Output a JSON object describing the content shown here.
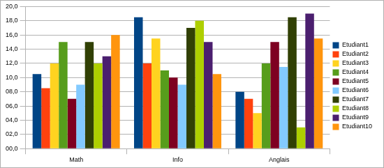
{
  "chart_data": {
    "type": "bar",
    "categories": [
      "Math",
      "Info",
      "Anglais"
    ],
    "series": [
      {
        "name": "Etudiant1",
        "color": "#004586",
        "values": [
          10.5,
          18.5,
          8
        ]
      },
      {
        "name": "Etudiant2",
        "color": "#ff420e",
        "values": [
          8.5,
          12,
          7
        ]
      },
      {
        "name": "Etudiant3",
        "color": "#ffd320",
        "values": [
          12,
          15.5,
          5
        ]
      },
      {
        "name": "Etudiant4",
        "color": "#579d1c",
        "values": [
          15,
          11,
          12
        ]
      },
      {
        "name": "Etudiant5",
        "color": "#7e0021",
        "values": [
          7,
          10,
          15
        ]
      },
      {
        "name": "Etudiant6",
        "color": "#83caff",
        "values": [
          9,
          9,
          11.5
        ]
      },
      {
        "name": "Etudiant7",
        "color": "#314004",
        "values": [
          15,
          17,
          18.5
        ]
      },
      {
        "name": "Etudiant8",
        "color": "#aecf00",
        "values": [
          12,
          18,
          3
        ]
      },
      {
        "name": "Etudiant9",
        "color": "#4b1f6f",
        "values": [
          13,
          15,
          19
        ]
      },
      {
        "name": "Etudiant10",
        "color": "#ff950e",
        "values": [
          16,
          10.5,
          15.5
        ]
      }
    ],
    "ylim": [
      0,
      20
    ],
    "yticks": [
      {
        "value": 0,
        "label": "00,0"
      },
      {
        "value": 2,
        "label": "02,0"
      },
      {
        "value": 4,
        "label": "04,0"
      },
      {
        "value": 6,
        "label": "06,0"
      },
      {
        "value": 8,
        "label": "08,0"
      },
      {
        "value": 10,
        "label": "10,0"
      },
      {
        "value": 12,
        "label": "12,0"
      },
      {
        "value": 14,
        "label": "14,0"
      },
      {
        "value": 16,
        "label": "16,0"
      },
      {
        "value": 18,
        "label": "18,0"
      },
      {
        "value": 20,
        "label": "20,0"
      }
    ],
    "grid": true,
    "legend": "right"
  }
}
